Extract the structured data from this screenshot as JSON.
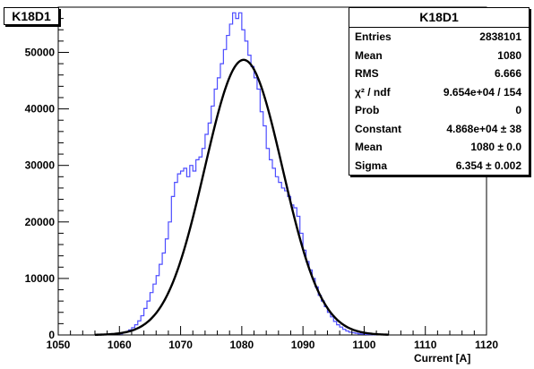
{
  "histogram_title": "K18D1",
  "stats_box": {
    "title": "K18D1",
    "rows": [
      {
        "label": "Entries",
        "value": "2838101"
      },
      {
        "label": "Mean",
        "value": "1080"
      },
      {
        "label": "RMS",
        "value": "6.666"
      },
      {
        "label": "χ² / ndf",
        "value": "9.654e+04 / 154"
      },
      {
        "label": "Prob",
        "value": "0"
      },
      {
        "label": "Constant",
        "value": "4.868e+04 ± 38"
      },
      {
        "label": "Mean",
        "value": "1080 ± 0.0"
      },
      {
        "label": "Sigma",
        "value": "6.354 ± 0.002"
      }
    ]
  },
  "colors": {
    "histogram": "#4d4dff",
    "fit": "#000000",
    "axis": "#000000"
  },
  "chart_data": {
    "type": "line",
    "title": "K18D1",
    "xlabel": "Current [A]",
    "ylabel": "",
    "xlim": [
      1050,
      1120
    ],
    "ylim": [
      0,
      58000
    ],
    "x_ticks": [
      1050,
      1060,
      1070,
      1080,
      1090,
      1100,
      1110,
      1120
    ],
    "x_tick_labels": [
      "1050",
      "1060",
      "1070",
      "1080",
      "1090",
      "1100",
      "1110",
      "1120"
    ],
    "y_ticks": [
      0,
      10000,
      20000,
      30000,
      40000,
      50000
    ],
    "y_tick_labels": [
      "0",
      "10000",
      "20000",
      "30000",
      "40000",
      "50000"
    ],
    "grid": false,
    "series": [
      {
        "style": "histogram",
        "bin_width": 0.5,
        "x": [
          1060,
          1060.5,
          1061,
          1061.5,
          1062,
          1062.5,
          1063,
          1063.5,
          1064,
          1064.5,
          1065,
          1065.5,
          1066,
          1066.5,
          1067,
          1067.5,
          1068,
          1068.5,
          1069,
          1069.5,
          1070,
          1070.5,
          1071,
          1071.5,
          1072,
          1072.5,
          1073,
          1073.5,
          1074,
          1074.5,
          1075,
          1075.5,
          1076,
          1076.5,
          1077,
          1077.5,
          1078,
          1078.5,
          1079,
          1079.5,
          1080,
          1080.5,
          1081,
          1081.5,
          1082,
          1082.5,
          1083,
          1083.5,
          1084,
          1084.5,
          1085,
          1085.5,
          1086,
          1086.5,
          1087,
          1087.5,
          1088,
          1088.5,
          1089,
          1089.5,
          1090,
          1090.5,
          1091,
          1091.5,
          1092,
          1092.5,
          1093,
          1093.5,
          1094,
          1094.5,
          1095,
          1095.5,
          1096,
          1096.5,
          1097,
          1097.5,
          1098,
          1098.5,
          1099,
          1099.5,
          1100,
          1100.5,
          1101,
          1101.5
        ],
        "values": [
          200,
          400,
          600,
          900,
          1300,
          1800,
          2500,
          3400,
          4700,
          6000,
          7500,
          9000,
          10500,
          12500,
          14500,
          17000,
          20000,
          24500,
          27000,
          28500,
          29000,
          29500,
          28000,
          30000,
          29000,
          31000,
          31500,
          33000,
          35500,
          37500,
          40500,
          43500,
          45500,
          48000,
          50500,
          53000,
          55000,
          57000,
          56000,
          57000,
          54000,
          52000,
          49500,
          47500,
          45500,
          43500,
          39500,
          37000,
          33000,
          31000,
          29500,
          28000,
          27000,
          26000,
          25500,
          24500,
          23000,
          22500,
          21000,
          18000,
          15000,
          13000,
          11500,
          10000,
          8500,
          7000,
          6000,
          5000,
          4000,
          3200,
          2400,
          1800,
          1400,
          1000,
          700,
          500,
          400,
          300,
          200,
          150,
          100,
          80,
          50,
          30
        ]
      },
      {
        "style": "fit",
        "function": "gaus",
        "constant": 48680,
        "mean": 1080.3,
        "sigma": 6.354,
        "range": [
          1056,
          1104
        ]
      }
    ]
  }
}
